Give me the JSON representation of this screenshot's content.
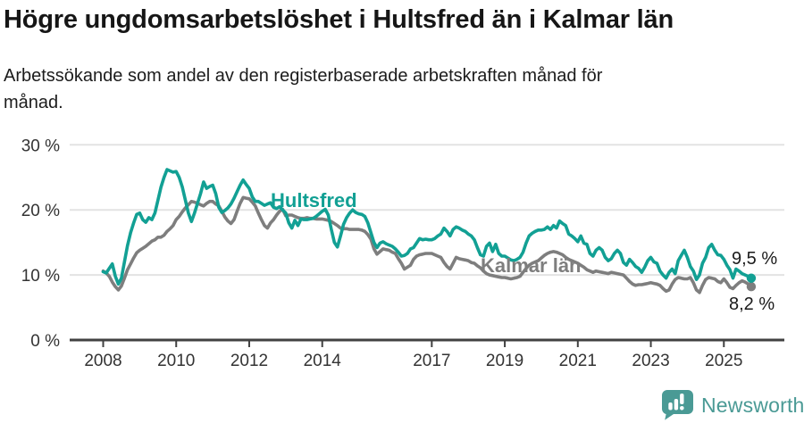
{
  "header": {
    "title": "Högre ungdomsarbetslöshet i Hultsfred än i Kalmar län",
    "subtitle_lines": [
      "Arbetssökande som andel av den registerbaserade arbetskraften månad för",
      "månad."
    ]
  },
  "chart_data": {
    "type": "line",
    "x_start": "2008-01",
    "x_step": "1 month",
    "x_end": "2025-10",
    "x_tick_years": [
      2008,
      2010,
      2012,
      2014,
      2017,
      2019,
      2021,
      2023,
      2025
    ],
    "y_ticks": [
      0,
      10,
      20,
      30
    ],
    "y_tick_suffix": " %",
    "ylim": [
      0,
      31
    ],
    "grid": "horizontal-only",
    "legend_position": "inline-labels",
    "series": [
      {
        "name": "Hultsfred",
        "color": "#12a094",
        "end_label": "9,5 %",
        "end_value": 9.5,
        "values": [
          10.5,
          10.3,
          11.0,
          11.7,
          9.8,
          8.6,
          9.5,
          12.0,
          14.5,
          16.5,
          18.0,
          19.3,
          19.5,
          18.5,
          18.1,
          18.8,
          18.5,
          19.5,
          21.5,
          23.5,
          25.0,
          26.2,
          26.0,
          25.8,
          25.9,
          25.0,
          23.5,
          21.5,
          19.5,
          18.2,
          19.5,
          21.0,
          22.5,
          24.3,
          23.3,
          23.6,
          23.8,
          22.5,
          20.4,
          19.6,
          19.9,
          20.3,
          20.9,
          21.8,
          22.8,
          23.8,
          24.6,
          23.9,
          23.3,
          22.0,
          21.3,
          21.3,
          21.0,
          20.7,
          20.9,
          21.1,
          20.4,
          20.2,
          20.5,
          20.0,
          19.5,
          18.0,
          17.2,
          18.4,
          17.6,
          18.6,
          18.5,
          18.5,
          18.6,
          18.7,
          19.0,
          19.4,
          19.8,
          20.1,
          19.2,
          17.0,
          15.0,
          14.3,
          16.0,
          17.8,
          18.8,
          19.5,
          20.0,
          19.6,
          19.4,
          19.3,
          19.0,
          18.0,
          16.5,
          15.0,
          14.2,
          14.9,
          15.1,
          14.8,
          14.6,
          14.4,
          14.0,
          13.5,
          12.9,
          13.0,
          13.3,
          14.0,
          14.2,
          14.9,
          15.6,
          15.4,
          15.5,
          15.4,
          15.4,
          15.6,
          16.0,
          16.3,
          17.2,
          16.7,
          16.0,
          17.0,
          17.4,
          17.2,
          16.9,
          16.7,
          16.3,
          16.0,
          15.4,
          14.2,
          13.1,
          12.9,
          14.4,
          14.9,
          13.6,
          14.7,
          13.3,
          12.9,
          12.9,
          12.6,
          12.3,
          12.2,
          12.4,
          12.7,
          13.5,
          14.9,
          16.0,
          16.4,
          16.7,
          16.9,
          16.9,
          17.0,
          17.4,
          17.0,
          17.6,
          17.2,
          18.3,
          17.9,
          17.6,
          16.3,
          16.0,
          15.6,
          15.1,
          16.0,
          14.9,
          14.7,
          13.3,
          12.9,
          13.8,
          14.2,
          13.8,
          12.7,
          12.2,
          12.5,
          13.3,
          13.8,
          13.3,
          11.9,
          11.5,
          12.4,
          11.9,
          11.3,
          11.0,
          10.4,
          11.2,
          12.2,
          12.7,
          12.0,
          11.8,
          10.6,
          10.0,
          9.5,
          10.4,
          10.9,
          10.2,
          12.2,
          13.0,
          13.8,
          12.7,
          11.3,
          10.6,
          9.3,
          10.0,
          11.8,
          12.7,
          14.2,
          14.7,
          13.8,
          13.1,
          13.0,
          12.4,
          11.5,
          10.8,
          9.5,
          10.9,
          10.6,
          10.2,
          10.0,
          9.8,
          9.5
        ]
      },
      {
        "name": "Kalmar län",
        "color": "#7e7e7e",
        "end_label": "8,2 %",
        "end_value": 8.2,
        "values": [
          10.6,
          10.3,
          9.8,
          8.9,
          8.2,
          7.7,
          8.3,
          9.5,
          10.8,
          11.7,
          12.6,
          13.4,
          13.8,
          14.1,
          14.4,
          14.8,
          15.2,
          15.4,
          15.8,
          15.8,
          16.1,
          16.7,
          17.1,
          17.6,
          18.5,
          19.0,
          19.7,
          20.3,
          20.8,
          21.3,
          21.2,
          21.0,
          20.8,
          20.6,
          21.0,
          21.3,
          21.3,
          20.9,
          20.6,
          19.8,
          18.9,
          18.3,
          17.9,
          18.5,
          19.8,
          21.0,
          21.9,
          21.8,
          21.7,
          21.2,
          20.6,
          19.5,
          18.5,
          17.6,
          17.2,
          18.0,
          18.5,
          19.2,
          19.8,
          20.1,
          19.1,
          19.2,
          19.2,
          19.0,
          18.8,
          18.7,
          18.7,
          18.8,
          18.7,
          18.7,
          18.6,
          18.6,
          18.6,
          18.5,
          18.4,
          18.2,
          17.9,
          17.6,
          17.2,
          17.1,
          17.1,
          17.0,
          17.0,
          17.0,
          17.0,
          16.9,
          16.7,
          16.2,
          15.5,
          14.0,
          13.2,
          13.6,
          14.0,
          13.9,
          13.8,
          13.5,
          13.3,
          12.5,
          11.8,
          10.9,
          11.2,
          11.5,
          12.4,
          12.9,
          13.1,
          13.2,
          13.3,
          13.3,
          13.3,
          13.1,
          12.9,
          12.7,
          11.9,
          11.3,
          10.9,
          11.8,
          12.7,
          12.5,
          12.4,
          12.3,
          12.2,
          11.9,
          11.8,
          11.4,
          11.1,
          10.6,
          10.2,
          10.0,
          9.9,
          9.8,
          9.7,
          9.6,
          9.6,
          9.5,
          9.4,
          9.5,
          9.6,
          9.8,
          10.4,
          11.0,
          11.5,
          11.8,
          12.0,
          12.2,
          12.6,
          13.0,
          13.3,
          13.5,
          13.6,
          13.5,
          13.3,
          13.1,
          12.7,
          12.4,
          12.2,
          12.0,
          11.8,
          11.5,
          11.2,
          10.8,
          10.6,
          10.4,
          10.6,
          10.5,
          10.4,
          10.3,
          10.2,
          10.4,
          10.3,
          10.2,
          10.1,
          10.0,
          9.5,
          9.0,
          8.6,
          8.4,
          8.5,
          8.5,
          8.6,
          8.7,
          8.8,
          8.7,
          8.6,
          8.4,
          7.9,
          7.5,
          7.7,
          8.6,
          9.3,
          9.6,
          9.5,
          9.4,
          9.4,
          9.6,
          8.8,
          7.7,
          7.3,
          8.4,
          9.3,
          9.6,
          9.5,
          9.4,
          9.0,
          8.8,
          9.4,
          8.8,
          8.1,
          7.9,
          8.4,
          8.8,
          9.1,
          8.9,
          8.6,
          8.2
        ]
      }
    ],
    "title": "Högre ungdomsarbetslöshet i Hultsfred än i Kalmar län",
    "xlabel": "",
    "ylabel": ""
  },
  "colors": {
    "hultsfred_line": "#12a094",
    "kalmar_line": "#7e7e7e",
    "gridline": "#e3e3e3",
    "axis": "#414141",
    "tick_text": "#333333",
    "brand_teal": "#4a9a95"
  },
  "footer": {
    "brand": "Newsworthy"
  }
}
